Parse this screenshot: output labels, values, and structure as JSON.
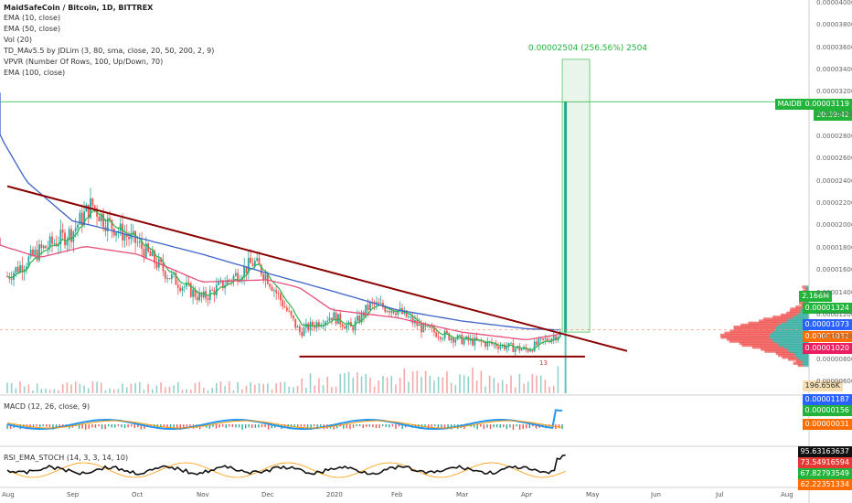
{
  "colors": {
    "up": "#26a69a",
    "down": "#ef5350",
    "green_line": "#2fb34a",
    "accent_green": "#22b33a",
    "blue_line": "#3c63c7",
    "pink_line": "#e8507a",
    "trendline": "#8b0000",
    "price_tag": "#22b33a",
    "blue_tag": "#2962ff",
    "orange_tag": "#ff6d00",
    "pink_tag": "#e91e63"
  },
  "header": {
    "symbol_line": "MaidSafeCoin / Bitcoin, 1D, BITTREX",
    "indicators": [
      "EMA (10, close)",
      "EMA (50, close)",
      "Vol (20)",
      "TD_MAv5.5 by JDLim (3, 80, sma, close, 20, 50, 200, 2, 9)",
      "VPVR (Number Of Rows, 100, Up/Down, 70)",
      "EMA (100, close)"
    ]
  },
  "measure_label": "0.00002504 (256.56%) 2504",
  "price_tags": {
    "symbol": "MAIDBTC",
    "last_price": "0.00003119",
    "countdown": "20:39:42",
    "volume": "2.166M",
    "green_level": "0.00001324",
    "blue_level": "0.00001073",
    "orange_level": "0.00001032",
    "pink_level": "0.00001020",
    "vol_ma": "196.656K",
    "macd_blue": "0.00001187",
    "macd_green": "0.00000156",
    "macd_orange": "0.00000031",
    "rsi_black": "95.63163637",
    "rsi_red": "73.54916594",
    "rsi_green": "67.82793549",
    "rsi_orange": "62.22351334"
  },
  "sub_panels": {
    "macd_label": "MACD (12, 26, close, 9)",
    "rsi_label": "RSI_EMA_STOCH (14, 3, 3, 14, 10)"
  },
  "annotations": {
    "count_label": "13"
  },
  "chart_data": {
    "type": "line",
    "title": "MaidSafeCoin / Bitcoin, 1D, BITTREX",
    "x_ticks": [
      "Aug",
      "Sep",
      "Oct",
      "Nov",
      "Dec",
      "2020",
      "Feb",
      "Mar",
      "Apr",
      "May",
      "Jun",
      "Jul",
      "Aug"
    ],
    "y_ticks": [
      "0.00004000",
      "0.00003800",
      "0.00003600",
      "0.00003400",
      "0.00003200",
      "0.00003000",
      "0.00002800",
      "0.00002600",
      "0.00002400",
      "0.00002200",
      "0.00002000",
      "0.00001800",
      "0.00001600",
      "0.00001400",
      "0.00001200",
      "0.00001000",
      "0.00000800",
      "0.00000600"
    ],
    "ylim": [
      5.5e-06,
      4e-05
    ],
    "price_path": {
      "name": "MAIDBTC",
      "x_month_index": [
        0,
        0.5,
        1.0,
        1.3,
        1.5,
        2.0,
        2.5,
        3.0,
        3.5,
        3.8,
        4.0,
        4.5,
        5.0,
        5.3,
        5.6,
        6.0,
        6.4,
        7.0,
        7.5,
        8.0,
        8.3,
        8.55,
        8.6
      ],
      "values": [
        1.55e-05,
        1.78e-05,
        1.95e-05,
        2.2e-05,
        2.05e-05,
        1.85e-05,
        1.55e-05,
        1.35e-05,
        1.55e-05,
        1.68e-05,
        1.55e-05,
        1.05e-05,
        1.2e-05,
        1.08e-05,
        1.3e-05,
        1.25e-05,
        1.08e-05,
        9.8e-06,
        9.4e-06,
        8.9e-06,
        9.8e-06,
        1.05e-05,
        3.119e-05
      ]
    },
    "series": [
      {
        "name": "EMA (100, close)",
        "x_month_index": [
          -0.5,
          0.3,
          1.0,
          1.5,
          2.0,
          3.0,
          4.0,
          5.0,
          6.0,
          7.0,
          8.0,
          8.5
        ],
        "values": [
          3.2e-05,
          2.4e-05,
          2.05e-05,
          1.98e-05,
          1.9e-05,
          1.75e-05,
          1.58e-05,
          1.42e-05,
          1.25e-05,
          1.15e-05,
          1.08e-05,
          1.07e-05
        ]
      },
      {
        "name": "EMA (50, close)",
        "x_month_index": [
          -0.5,
          0.5,
          1.2,
          2.0,
          3.0,
          4.0,
          4.5,
          5.0,
          6.0,
          7.0,
          8.0,
          8.5
        ],
        "values": [
          1.9e-05,
          1.72e-05,
          1.82e-05,
          1.75e-05,
          1.5e-05,
          1.52e-05,
          1.45e-05,
          1.25e-05,
          1.18e-05,
          1.05e-05,
          9.8e-06,
          1.03e-05
        ]
      }
    ],
    "trendlines": [
      {
        "name": "descending resistance",
        "from": [
          0.0,
          2.36e-05
        ],
        "to": [
          9.55,
          8.8e-06
        ]
      },
      {
        "name": "horizontal support",
        "from": [
          4.5,
          8.3e-06
        ],
        "to": [
          8.9,
          8.3e-06
        ]
      }
    ],
    "grid": false,
    "legend": "top-left"
  }
}
